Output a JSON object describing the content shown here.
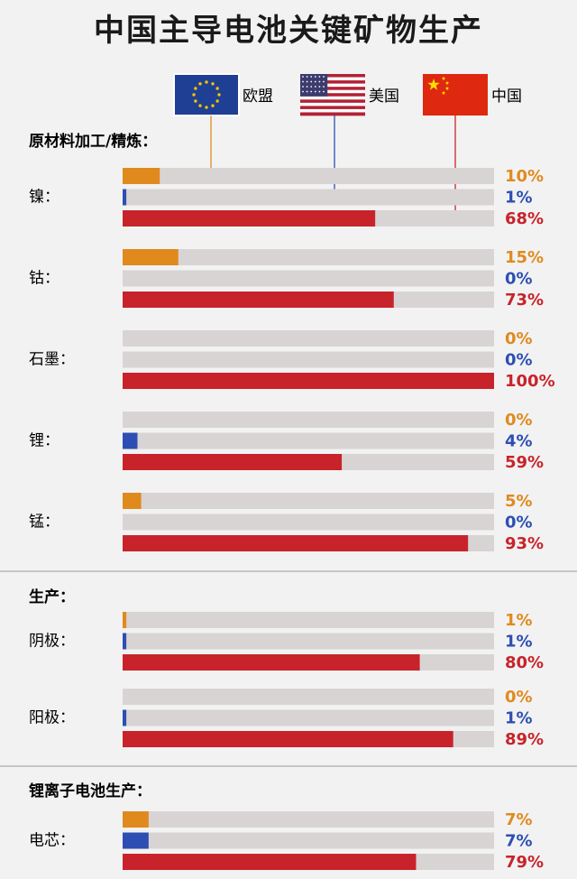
{
  "title": "中国主导电池关键矿物生产",
  "colors": {
    "eu": "#e08a1e",
    "us": "#2d4fb3",
    "cn": "#c8232b",
    "track": "#d9d4d4",
    "divider": "#b8b8b8"
  },
  "legend": [
    {
      "key": "eu",
      "label": "欧盟",
      "flag": "eu-flag"
    },
    {
      "key": "us",
      "label": "美国",
      "flag": "us-flag"
    },
    {
      "key": "cn",
      "label": "中国",
      "flag": "china-flag"
    }
  ],
  "chart_data": {
    "type": "bar",
    "orientation": "horizontal",
    "xlim": [
      0,
      100
    ],
    "unit": "%",
    "series": [
      {
        "name": "欧盟",
        "key": "eu"
      },
      {
        "name": "美国",
        "key": "us"
      },
      {
        "name": "中国",
        "key": "cn"
      }
    ],
    "sections": [
      {
        "title": "原材料加工/精炼：",
        "rows": [
          {
            "label": "镍：",
            "values": [
              10,
              1,
              68
            ]
          },
          {
            "label": "钴：",
            "values": [
              15,
              0,
              73
            ]
          },
          {
            "label": "石墨：",
            "values": [
              0,
              0,
              100
            ]
          },
          {
            "label": "锂：",
            "values": [
              0,
              4,
              59
            ]
          },
          {
            "label": "锰：",
            "values": [
              5,
              0,
              93
            ]
          }
        ]
      },
      {
        "title": "生产：",
        "rows": [
          {
            "label": "阴极：",
            "values": [
              1,
              1,
              80
            ]
          },
          {
            "label": "阳极：",
            "values": [
              0,
              1,
              89
            ]
          }
        ]
      },
      {
        "title": "锂离子电池生产：",
        "rows": [
          {
            "label": "电芯：",
            "values": [
              7,
              7,
              79
            ]
          }
        ]
      }
    ]
  }
}
